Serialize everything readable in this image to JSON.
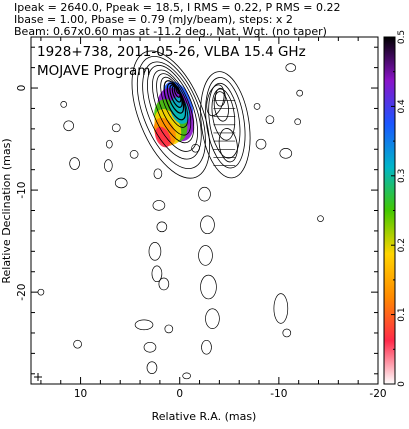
{
  "header": {
    "line1": "Ipeak = 2640.0, Ppeak = 18.5, I RMS = 0.22, P RMS = 0.22",
    "line2": "Ibase = 1.00, Pbase = 0.79 (mJy/beam), steps: x 2",
    "line3": "Beam: 0.67x0.60 mas at -11.2 deg., Nat. Wgt. (no taper)"
  },
  "chart_data": {
    "type": "contour",
    "title": "1928+738, 2011-05-26, VLBA 15.4 GHz",
    "subtitle": "MOJAVE Program",
    "xlabel": "Relative R.A. (mas)",
    "ylabel": "Relative Declination (mas)",
    "xlim": [
      15,
      -20
    ],
    "ylim": [
      -29,
      5
    ],
    "x_ticks": [
      10,
      0,
      -10,
      -20
    ],
    "x_tick_labels": [
      "10",
      "0",
      "-10",
      "-20"
    ],
    "y_ticks": [
      0,
      -10,
      -20
    ],
    "y_tick_labels": [
      "0",
      "-10",
      "-20"
    ],
    "colorbar": {
      "range": [
        0,
        0.5
      ],
      "ticks": [
        0,
        0.1,
        0.2,
        0.3,
        0.4,
        0.5
      ],
      "tick_labels": [
        "0",
        "0.1",
        "0.2",
        "0.3",
        "0.4",
        "0.5"
      ],
      "colors": [
        "#ffffff",
        "#ff2a4a",
        "#ff8a00",
        "#ffd400",
        "#42c800",
        "#00b6c8",
        "#1a56ff",
        "#8a14c8",
        "#000000"
      ]
    },
    "total_intensity_contours": {
      "base_mjy_per_beam": 1.0,
      "step_factor": 2,
      "peak_mjy_per_beam": 2640.0,
      "core_position": [
        0,
        0
      ],
      "jet_components": [
        {
          "x": 0.2,
          "y": 0.3
        },
        {
          "x": 0.8,
          "y": -1.5
        },
        {
          "x": 1.4,
          "y": -3.2
        },
        {
          "x": 1.6,
          "y": -4.6
        },
        {
          "x": -4.2,
          "y": -1.7
        },
        {
          "x": -4.6,
          "y": -4.0
        },
        {
          "x": -5.0,
          "y": -6.2
        }
      ]
    },
    "polarized_intensity_features": [
      {
        "x": 1.0,
        "y": -2.5,
        "level": 0.15
      },
      {
        "x": 1.5,
        "y": -4.0,
        "level": 0.3
      },
      {
        "x": 0.5,
        "y": -3.5,
        "level": 0.12
      }
    ]
  }
}
